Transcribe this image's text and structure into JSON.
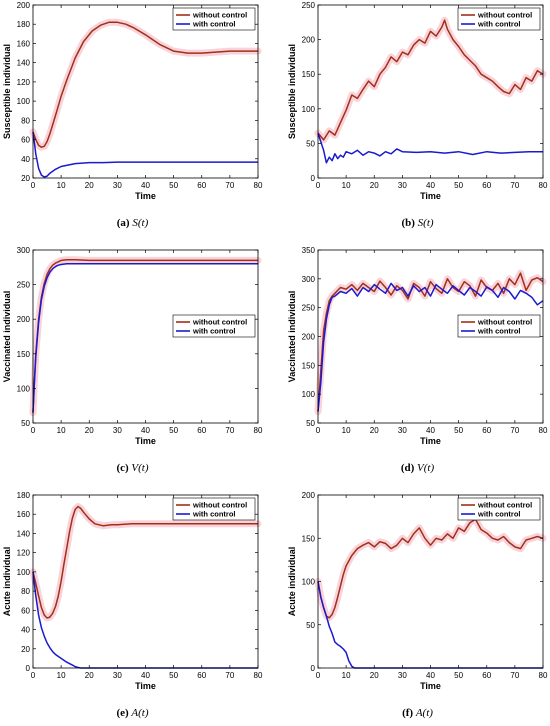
{
  "colors": {
    "without": "#a0301a",
    "with": "#1a1ad0",
    "shade": "#f7c8cf"
  },
  "chart_data": [
    {
      "type": "line",
      "xlabel": "Time",
      "ylabel": "Susceptible individual",
      "xlim": [
        0,
        80
      ],
      "ylim": [
        20,
        200
      ],
      "xticks": [
        "0",
        "10",
        "20",
        "30",
        "40",
        "50",
        "60",
        "70",
        "80"
      ],
      "yticks": [
        "20",
        "40",
        "60",
        "80",
        "100",
        "120",
        "140",
        "160",
        "180",
        "200"
      ],
      "legend": "top-right",
      "caption": {
        "tag": "(a)",
        "fn": "S(t)"
      },
      "series": [
        {
          "name": "without control",
          "x": [
            0,
            1,
            2,
            3,
            4,
            5,
            6,
            8,
            10,
            12,
            15,
            18,
            21,
            24,
            27,
            30,
            33,
            36,
            40,
            45,
            50,
            55,
            60,
            65,
            70,
            75,
            80
          ],
          "y": [
            68,
            60,
            54,
            52,
            53,
            58,
            66,
            85,
            105,
            122,
            145,
            162,
            173,
            179,
            182,
            182,
            180,
            176,
            169,
            159,
            152,
            150,
            150,
            151,
            152,
            152,
            152
          ]
        },
        {
          "name": "with control",
          "x": [
            0,
            1,
            2,
            3,
            4,
            5,
            6,
            8,
            10,
            15,
            20,
            25,
            30,
            40,
            50,
            60,
            70,
            80
          ],
          "y": [
            68,
            45,
            30,
            23,
            21,
            22,
            25,
            29,
            32,
            35,
            36,
            36,
            36.5,
            36.5,
            36.5,
            36.5,
            36.5,
            36.5
          ]
        }
      ]
    },
    {
      "type": "line",
      "xlabel": "Time",
      "ylabel": "Susceptible individual",
      "xlim": [
        0,
        80
      ],
      "ylim": [
        0,
        250
      ],
      "xticks": [
        "0",
        "10",
        "20",
        "30",
        "40",
        "50",
        "60",
        "70",
        "80"
      ],
      "yticks": [
        "0",
        "50",
        "100",
        "150",
        "200",
        "250"
      ],
      "legend": "top-right",
      "caption": {
        "tag": "(b)",
        "fn": "S(t)"
      },
      "series": [
        {
          "name": "without control",
          "x": [
            0,
            2,
            4,
            6,
            8,
            10,
            12,
            14,
            16,
            18,
            20,
            22,
            24,
            26,
            28,
            30,
            32,
            34,
            36,
            38,
            40,
            42,
            44,
            45,
            46,
            48,
            50,
            52,
            54,
            56,
            58,
            60,
            62,
            64,
            66,
            68,
            70,
            72,
            74,
            76,
            78,
            80
          ],
          "y": [
            65,
            55,
            68,
            62,
            80,
            98,
            120,
            115,
            128,
            140,
            132,
            150,
            160,
            175,
            168,
            182,
            178,
            192,
            200,
            195,
            212,
            205,
            218,
            228,
            215,
            200,
            190,
            178,
            170,
            162,
            150,
            145,
            140,
            132,
            125,
            122,
            135,
            128,
            145,
            140,
            155,
            150
          ]
        },
        {
          "name": "with control",
          "x": [
            0,
            2,
            3,
            4,
            5,
            6,
            7,
            8,
            9,
            10,
            12,
            14,
            16,
            18,
            20,
            22,
            24,
            26,
            28,
            30,
            35,
            40,
            45,
            50,
            55,
            60,
            65,
            70,
            75,
            80
          ],
          "y": [
            65,
            40,
            22,
            30,
            25,
            35,
            28,
            33,
            30,
            38,
            35,
            40,
            33,
            38,
            36,
            32,
            38,
            35,
            42,
            38,
            37,
            38,
            36,
            38,
            34,
            38,
            36,
            37,
            38,
            38
          ]
        }
      ]
    },
    {
      "type": "line",
      "xlabel": "Time",
      "ylabel": "Vaccinated individual",
      "xlim": [
        0,
        80
      ],
      "ylim": [
        50,
        300
      ],
      "xticks": [
        "0",
        "10",
        "20",
        "30",
        "40",
        "50",
        "60",
        "70",
        "80"
      ],
      "yticks": [
        "50",
        "100",
        "150",
        "200",
        "250",
        "300"
      ],
      "legend": "center-right",
      "caption": {
        "tag": "(c)",
        "fn": "V(t)"
      },
      "series": [
        {
          "name": "without control",
          "x": [
            0,
            0.5,
            1,
            2,
            3,
            4,
            5,
            6,
            7,
            8,
            9,
            10,
            12,
            15,
            20,
            25,
            30,
            40,
            50,
            60,
            70,
            80
          ],
          "y": [
            65,
            110,
            150,
            200,
            232,
            252,
            265,
            273,
            278,
            281,
            283,
            285,
            286,
            286,
            285,
            285,
            285,
            285,
            285,
            285,
            285,
            285
          ]
        },
        {
          "name": "with control",
          "x": [
            0,
            0.5,
            1,
            2,
            3,
            4,
            5,
            6,
            7,
            8,
            9,
            10,
            12,
            15,
            20,
            25,
            30,
            40,
            50,
            60,
            70,
            80
          ],
          "y": [
            65,
            108,
            146,
            195,
            228,
            248,
            260,
            268,
            273,
            276,
            278,
            279,
            280,
            280,
            280,
            280,
            280,
            280,
            280,
            280,
            280,
            280
          ]
        }
      ]
    },
    {
      "type": "line",
      "xlabel": "Time",
      "ylabel": "Vaccinated individual",
      "xlim": [
        0,
        80
      ],
      "ylim": [
        50,
        350
      ],
      "xticks": [
        "0",
        "10",
        "20",
        "30",
        "40",
        "50",
        "60",
        "70",
        "80"
      ],
      "yticks": [
        "50",
        "100",
        "150",
        "200",
        "250",
        "300",
        "350"
      ],
      "legend": "center-right",
      "caption": {
        "tag": "(d)",
        "fn": "V(t)"
      },
      "series": [
        {
          "name": "without control",
          "x": [
            0,
            1,
            2,
            3,
            4,
            5,
            6,
            8,
            10,
            12,
            14,
            16,
            18,
            20,
            22,
            24,
            26,
            28,
            30,
            32,
            34,
            36,
            38,
            40,
            42,
            44,
            46,
            48,
            50,
            52,
            54,
            56,
            58,
            60,
            62,
            64,
            66,
            68,
            70,
            72,
            74,
            76,
            78,
            80
          ],
          "y": [
            70,
            140,
            210,
            240,
            262,
            270,
            275,
            285,
            282,
            290,
            280,
            292,
            285,
            278,
            296,
            285,
            272,
            288,
            280,
            265,
            292,
            285,
            270,
            295,
            283,
            275,
            300,
            285,
            278,
            295,
            288,
            270,
            298,
            285,
            280,
            292,
            275,
            300,
            290,
            310,
            280,
            298,
            302,
            295
          ]
        },
        {
          "name": "with control",
          "x": [
            0,
            1,
            2,
            3,
            4,
            5,
            6,
            8,
            10,
            12,
            14,
            16,
            18,
            20,
            22,
            24,
            26,
            28,
            30,
            32,
            34,
            36,
            38,
            40,
            42,
            44,
            46,
            48,
            50,
            52,
            54,
            56,
            58,
            60,
            62,
            64,
            66,
            68,
            70,
            72,
            74,
            76,
            78,
            80
          ],
          "y": [
            70,
            120,
            190,
            230,
            255,
            268,
            270,
            278,
            275,
            283,
            270,
            285,
            278,
            290,
            282,
            275,
            292,
            280,
            285,
            270,
            288,
            278,
            285,
            270,
            290,
            282,
            275,
            288,
            280,
            272,
            285,
            278,
            270,
            286,
            280,
            268,
            285,
            278,
            265,
            280,
            275,
            268,
            255,
            262
          ]
        }
      ]
    },
    {
      "type": "line",
      "xlabel": "Time",
      "ylabel": "Acute individual",
      "xlim": [
        0,
        80
      ],
      "ylim": [
        0,
        180
      ],
      "xticks": [
        "0",
        "10",
        "20",
        "30",
        "40",
        "50",
        "60",
        "70",
        "80"
      ],
      "yticks": [
        "0",
        "20",
        "40",
        "60",
        "80",
        "100",
        "120",
        "140",
        "160",
        "180"
      ],
      "legend": "top-right",
      "caption": {
        "tag": "(e)",
        "fn": "A(t)"
      },
      "series": [
        {
          "name": "without control",
          "x": [
            0,
            1,
            2,
            3,
            4,
            5,
            6,
            7,
            8,
            9,
            10,
            11,
            12,
            13,
            14,
            15,
            16,
            17,
            18,
            20,
            22,
            25,
            28,
            30,
            35,
            40,
            50,
            60,
            70,
            80
          ],
          "y": [
            100,
            88,
            75,
            63,
            55,
            52,
            53,
            57,
            64,
            75,
            90,
            108,
            125,
            142,
            156,
            165,
            168,
            166,
            162,
            155,
            150,
            148,
            149,
            149,
            150,
            150,
            150,
            150,
            150,
            150
          ]
        },
        {
          "name": "with control",
          "x": [
            0,
            1,
            2,
            3,
            4,
            5,
            6,
            7,
            8,
            10,
            12,
            14,
            15,
            16,
            17,
            18,
            20,
            30,
            40,
            50,
            60,
            70,
            80
          ],
          "y": [
            100,
            75,
            55,
            42,
            33,
            26,
            21,
            17,
            14,
            10,
            6,
            3,
            1.5,
            0.5,
            0,
            0,
            0,
            0,
            0,
            0,
            0,
            0,
            0
          ]
        }
      ]
    },
    {
      "type": "line",
      "xlabel": "Time",
      "ylabel": "Acute individual",
      "xlim": [
        0,
        80
      ],
      "ylim": [
        0,
        200
      ],
      "xticks": [
        "0",
        "10",
        "20",
        "30",
        "40",
        "50",
        "60",
        "70",
        "80"
      ],
      "yticks": [
        "0",
        "50",
        "100",
        "150",
        "200"
      ],
      "legend": "top-right",
      "caption": {
        "tag": "(f)",
        "fn": "A(t)"
      },
      "series": [
        {
          "name": "without control",
          "x": [
            0,
            1,
            2,
            3,
            4,
            5,
            6,
            7,
            8,
            9,
            10,
            12,
            14,
            16,
            18,
            20,
            22,
            24,
            26,
            28,
            30,
            32,
            34,
            36,
            38,
            40,
            42,
            44,
            46,
            48,
            50,
            52,
            54,
            56,
            58,
            60,
            62,
            64,
            66,
            68,
            70,
            72,
            74,
            76,
            78,
            80
          ],
          "y": [
            100,
            82,
            70,
            60,
            58,
            62,
            70,
            82,
            95,
            108,
            118,
            130,
            138,
            142,
            145,
            140,
            146,
            144,
            138,
            142,
            150,
            145,
            155,
            162,
            150,
            142,
            150,
            148,
            155,
            150,
            162,
            158,
            168,
            172,
            160,
            156,
            150,
            148,
            152,
            145,
            140,
            138,
            148,
            150,
            152,
            150
          ]
        },
        {
          "name": "with control",
          "x": [
            0,
            1,
            2,
            3,
            4,
            5,
            6,
            7,
            8,
            9,
            10,
            11,
            12,
            13,
            14,
            15,
            20,
            30,
            40,
            50,
            60,
            70,
            80
          ],
          "y": [
            100,
            82,
            70,
            60,
            48,
            40,
            30,
            27,
            25,
            22,
            18,
            8,
            2,
            0,
            0,
            0,
            0,
            0,
            0,
            0,
            0,
            0,
            0
          ]
        }
      ]
    }
  ]
}
